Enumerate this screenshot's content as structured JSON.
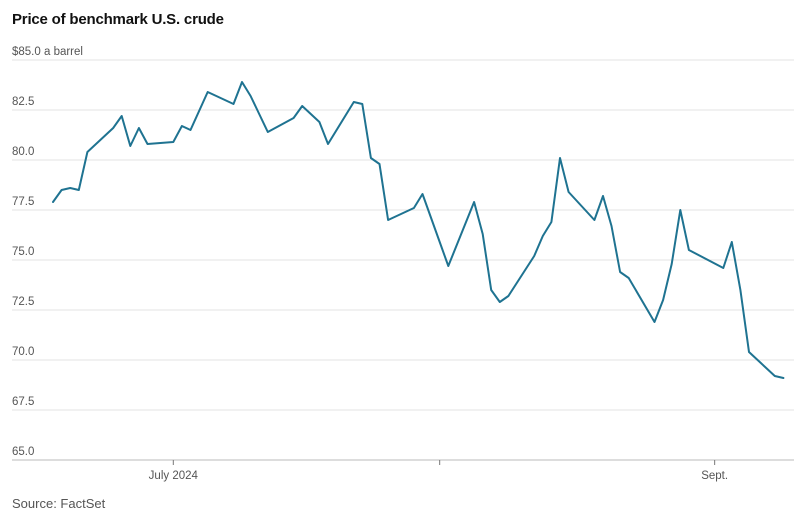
{
  "header": {
    "title": "Price of benchmark U.S. crude"
  },
  "footer": {
    "source": "Source: FactSet"
  },
  "chart_data": {
    "type": "line",
    "title": "Price of benchmark U.S. crude",
    "ylabel": "",
    "xlabel": "",
    "ylim": [
      65,
      85
    ],
    "yticks": [
      65,
      67.5,
      70,
      72.5,
      75,
      77.5,
      80,
      82.5,
      85
    ],
    "ytick_labels": [
      "65.0",
      "67.5",
      "70.0",
      "72.5",
      "75.0",
      "77.5",
      "80.0",
      "82.5",
      "$85.0 a barrel"
    ],
    "xlim": [
      "2024-06-17",
      "2024-09-11"
    ],
    "xticks": [
      {
        "date": "2024-07-01",
        "label": "July 2024"
      },
      {
        "date": "2024-08-01",
        "label": ""
      },
      {
        "date": "2024-09-02",
        "label": "Sept."
      }
    ],
    "grid": true,
    "line_color": "#1f7391",
    "series": [
      {
        "name": "",
        "x": [
          "2024-06-17",
          "2024-06-18",
          "2024-06-19",
          "2024-06-20",
          "2024-06-21",
          "2024-06-24",
          "2024-06-25",
          "2024-06-26",
          "2024-06-27",
          "2024-06-28",
          "2024-07-01",
          "2024-07-02",
          "2024-07-03",
          "2024-07-05",
          "2024-07-08",
          "2024-07-09",
          "2024-07-10",
          "2024-07-11",
          "2024-07-12",
          "2024-07-15",
          "2024-07-16",
          "2024-07-17",
          "2024-07-18",
          "2024-07-19",
          "2024-07-22",
          "2024-07-23",
          "2024-07-24",
          "2024-07-25",
          "2024-07-26",
          "2024-07-29",
          "2024-07-30",
          "2024-07-31",
          "2024-08-01",
          "2024-08-02",
          "2024-08-05",
          "2024-08-06",
          "2024-08-07",
          "2024-08-08",
          "2024-08-09",
          "2024-08-12",
          "2024-08-13",
          "2024-08-14",
          "2024-08-15",
          "2024-08-16",
          "2024-08-19",
          "2024-08-20",
          "2024-08-21",
          "2024-08-22",
          "2024-08-23",
          "2024-08-26",
          "2024-08-27",
          "2024-08-28",
          "2024-08-29",
          "2024-08-30",
          "2024-09-03",
          "2024-09-04",
          "2024-09-05",
          "2024-09-06",
          "2024-09-09",
          "2024-09-10"
        ],
        "values": [
          77.9,
          78.5,
          78.6,
          78.5,
          80.4,
          81.6,
          82.2,
          80.7,
          81.6,
          80.8,
          80.9,
          81.7,
          81.5,
          83.4,
          82.8,
          83.9,
          83.2,
          82.3,
          81.4,
          82.1,
          82.7,
          82.3,
          81.9,
          80.8,
          82.9,
          82.8,
          80.1,
          79.8,
          77.0,
          77.6,
          78.3,
          77.1,
          75.9,
          74.7,
          77.9,
          76.3,
          73.5,
          72.9,
          73.2,
          75.2,
          76.2,
          76.9,
          80.1,
          78.4,
          77.0,
          78.2,
          76.7,
          74.4,
          74.1,
          71.9,
          73.0,
          74.8,
          77.5,
          75.5,
          74.6,
          75.9,
          73.5,
          70.4,
          69.2,
          69.1
        ]
      }
    ]
  }
}
